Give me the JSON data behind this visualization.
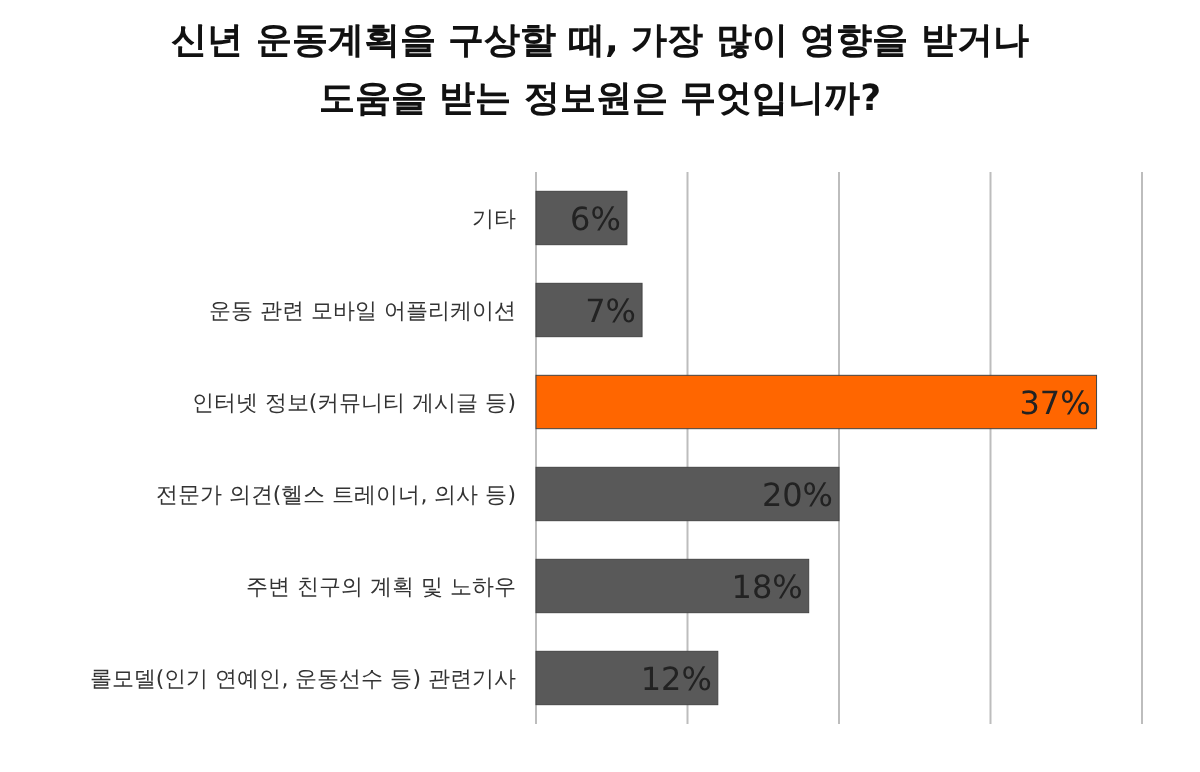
{
  "chart_data": {
    "type": "bar",
    "orientation": "horizontal",
    "title": "신년 운동계획을 구상할 때, 가장 많이 영향을 받거나 도움을 받는 정보원은 무엇입니까?",
    "categories": [
      "기타",
      "운동 관련 모바일 어플리케이션",
      "인터넷 정보(커뮤니티 게시글 등)",
      "전문가 의견(헬스 트레이너, 의사 등)",
      "주변 친구의 계획 및 노하우",
      "롤모델(인기 연예인, 운동선수 등) 관련기사"
    ],
    "values": [
      6,
      7,
      37,
      20,
      18,
      12
    ],
    "colors": [
      "#595959",
      "#595959",
      "#ff6600",
      "#595959",
      "#595959",
      "#595959"
    ],
    "value_labels": [
      "6%",
      "7%",
      "37%",
      "20%",
      "18%",
      "12%"
    ],
    "xlim": [
      0,
      40
    ],
    "xticks": [
      {
        "value": 0,
        "label": null
      },
      {
        "value": 10,
        "label": null
      },
      {
        "value": 20,
        "label": null
      },
      {
        "value": 30,
        "label": null
      },
      {
        "value": 40,
        "label": null
      }
    ],
    "grid": "x"
  }
}
